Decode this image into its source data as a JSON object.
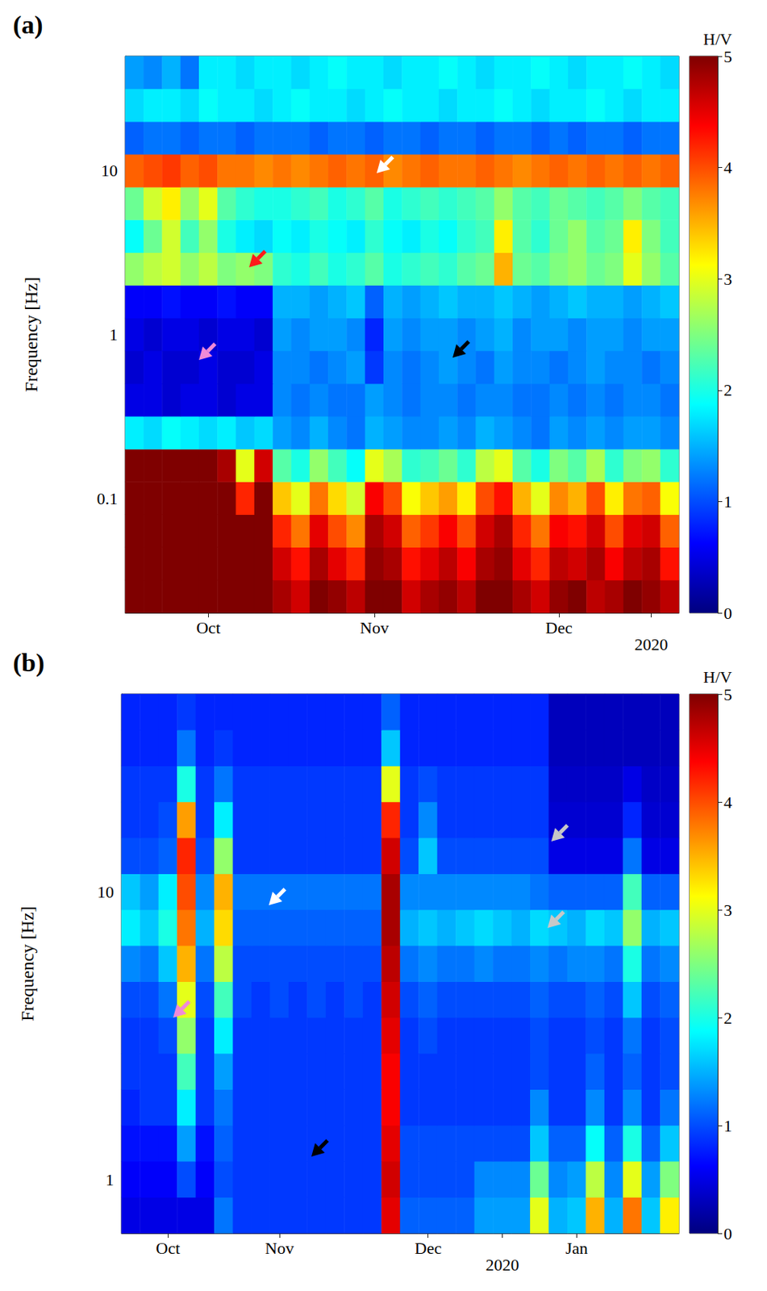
{
  "chart_data": [
    {
      "type": "heatmap",
      "title": "(a)",
      "x": [
        null,
        null,
        null,
        null,
        "Oct",
        null,
        null,
        null,
        null,
        null,
        null,
        null,
        null,
        "Nov",
        null,
        null,
        null,
        null,
        null,
        null,
        null,
        null,
        null,
        "Dec",
        null,
        null,
        null,
        null,
        "2020",
        null
      ],
      "y": [
        null,
        null,
        null,
        "0.1",
        null,
        null,
        null,
        null,
        "1",
        null,
        null,
        null,
        null,
        "10",
        null,
        null,
        null
      ],
      "ylabel": "Frequency [Hz]",
      "colorbar_label": "H/V",
      "colorbar_range": [
        0,
        5
      ],
      "colorbar_ticks": [
        0,
        1,
        2,
        3,
        4,
        5
      ],
      "cells": [
        [
          5,
          5,
          5,
          5,
          5,
          5,
          5,
          5,
          4.8,
          4.6,
          5,
          4.9,
          4.7,
          5,
          5,
          4.6,
          4.8,
          4.9,
          4.7,
          5,
          5,
          4.8,
          4.6,
          4.9,
          5,
          4.7,
          4.8,
          5,
          4.9,
          4.7
        ],
        [
          5,
          5,
          5,
          5,
          5,
          5,
          5,
          5,
          4.6,
          4.3,
          4.8,
          4.5,
          4.2,
          4.9,
          4.8,
          4.3,
          4.5,
          4.7,
          4.4,
          4.8,
          4.9,
          4.5,
          4.2,
          4.7,
          4.6,
          4.8,
          4.4,
          4.7,
          4.8,
          4.3
        ],
        [
          5,
          5,
          5,
          5,
          5,
          5,
          5,
          5,
          4.2,
          3.8,
          4.5,
          4.0,
          3.7,
          4.8,
          4.6,
          3.9,
          4.1,
          4.4,
          4.0,
          4.6,
          4.8,
          4.2,
          3.8,
          4.4,
          4.3,
          4.6,
          4.0,
          4.5,
          4.6,
          3.9
        ],
        [
          5,
          5,
          5,
          5,
          5,
          5,
          4.2,
          5,
          3.4,
          3.0,
          3.8,
          3.3,
          2.9,
          4.4,
          4.0,
          3.1,
          3.4,
          3.6,
          3.2,
          4.0,
          4.3,
          3.5,
          3.0,
          3.7,
          3.5,
          4.0,
          3.2,
          3.8,
          3.9,
          3.1
        ],
        [
          5,
          5,
          5,
          5,
          5,
          4.8,
          3.0,
          4.6,
          2.3,
          2.0,
          2.6,
          2.2,
          1.9,
          3.0,
          2.7,
          2.1,
          2.2,
          2.4,
          2.1,
          2.8,
          3.0,
          2.3,
          2.0,
          2.5,
          2.3,
          2.7,
          2.1,
          2.5,
          2.6,
          2.1
        ],
        [
          1.8,
          1.7,
          1.9,
          1.8,
          1.7,
          1.8,
          1.6,
          1.7,
          1.4,
          1.3,
          1.5,
          1.3,
          1.2,
          1.5,
          1.4,
          1.3,
          1.3,
          1.4,
          1.3,
          1.5,
          1.4,
          1.3,
          1.2,
          1.4,
          1.3,
          1.4,
          1.3,
          1.4,
          1.4,
          1.3
        ],
        [
          0.5,
          0.5,
          0.4,
          0.5,
          0.5,
          0.4,
          0.5,
          0.5,
          1.3,
          1.2,
          1.3,
          1.2,
          1.2,
          1.4,
          1.3,
          1.2,
          1.3,
          1.3,
          1.2,
          1.3,
          1.3,
          1.2,
          1.2,
          1.3,
          1.2,
          1.3,
          1.2,
          1.3,
          1.3,
          1.2
        ],
        [
          0.4,
          0.5,
          0.4,
          0.4,
          0.5,
          0.4,
          0.4,
          0.5,
          1.3,
          1.3,
          1.2,
          1.3,
          1.4,
          0.9,
          1.3,
          1.2,
          1.3,
          1.4,
          1.3,
          1.2,
          1.4,
          1.3,
          1.3,
          1.2,
          1.3,
          1.4,
          1.3,
          1.3,
          1.2,
          1.3
        ],
        [
          0.5,
          0.4,
          0.5,
          0.5,
          0.4,
          0.5,
          0.5,
          0.4,
          1.4,
          1.3,
          1.4,
          1.4,
          1.3,
          0.8,
          1.4,
          1.3,
          1.4,
          1.4,
          1.3,
          1.4,
          1.5,
          1.3,
          1.4,
          1.4,
          1.3,
          1.4,
          1.4,
          1.3,
          1.4,
          1.4
        ],
        [
          0.6,
          0.6,
          0.7,
          0.6,
          0.6,
          0.7,
          0.6,
          0.6,
          1.5,
          1.5,
          1.4,
          1.5,
          1.6,
          1.1,
          1.5,
          1.4,
          1.5,
          1.6,
          1.5,
          1.5,
          1.6,
          1.5,
          1.4,
          1.5,
          1.6,
          1.5,
          1.5,
          1.4,
          1.5,
          1.6
        ],
        [
          2.6,
          2.8,
          2.9,
          2.6,
          2.8,
          2.5,
          2.6,
          2.5,
          2.1,
          2.0,
          2.2,
          2.0,
          2.1,
          2.3,
          2.0,
          2.1,
          2.2,
          2.1,
          2.3,
          2.4,
          3.5,
          2.4,
          2.3,
          2.5,
          2.6,
          2.4,
          2.5,
          3.0,
          2.6,
          2.3
        ],
        [
          1.9,
          2.4,
          2.9,
          2.2,
          2.6,
          2.0,
          1.8,
          1.7,
          1.9,
          1.8,
          2.0,
          1.9,
          1.8,
          2.1,
          1.9,
          1.8,
          2.0,
          1.9,
          2.1,
          2.2,
          3.2,
          2.3,
          2.1,
          2.4,
          2.6,
          2.3,
          2.4,
          3.2,
          2.5,
          2.2
        ],
        [
          2.4,
          2.9,
          3.2,
          2.6,
          3.0,
          2.3,
          2.1,
          2.0,
          2.0,
          2.1,
          2.2,
          2.0,
          2.1,
          2.3,
          2.0,
          2.1,
          2.2,
          2.1,
          2.2,
          2.3,
          2.6,
          2.3,
          2.2,
          2.4,
          2.3,
          2.2,
          2.3,
          2.5,
          2.3,
          2.2
        ],
        [
          3.9,
          4.0,
          4.1,
          3.9,
          4.0,
          3.8,
          3.8,
          3.7,
          3.8,
          3.7,
          3.8,
          3.9,
          3.8,
          3.9,
          3.7,
          3.8,
          3.9,
          3.8,
          3.8,
          3.9,
          3.8,
          3.7,
          3.8,
          3.9,
          3.8,
          3.9,
          3.8,
          3.9,
          3.8,
          3.9
        ],
        [
          1.1,
          1.2,
          1.2,
          1.1,
          1.2,
          1.2,
          1.1,
          1.2,
          1.2,
          1.2,
          1.1,
          1.2,
          1.2,
          1.1,
          1.2,
          1.2,
          1.1,
          1.2,
          1.2,
          1.1,
          1.2,
          1.2,
          1.1,
          1.2,
          1.1,
          1.2,
          1.2,
          1.1,
          1.2,
          1.2
        ],
        [
          1.7,
          1.8,
          1.8,
          1.7,
          1.9,
          1.8,
          1.8,
          1.7,
          1.8,
          1.9,
          1.8,
          1.8,
          1.7,
          1.8,
          1.9,
          1.8,
          1.8,
          1.7,
          1.8,
          1.8,
          1.9,
          1.8,
          1.7,
          1.8,
          1.8,
          1.9,
          1.8,
          1.7,
          1.8,
          1.8
        ],
        [
          1.4,
          1.3,
          1.5,
          1.2,
          1.8,
          1.8,
          1.7,
          1.8,
          1.8,
          1.7,
          1.8,
          1.9,
          1.8,
          1.8,
          1.7,
          1.8,
          1.8,
          1.9,
          1.8,
          1.7,
          1.8,
          1.8,
          1.9,
          1.8,
          1.7,
          1.8,
          1.8,
          1.9,
          1.8,
          1.7
        ]
      ]
    },
    {
      "type": "heatmap",
      "title": "(b)",
      "x": [
        null,
        null,
        "Oct",
        null,
        null,
        null,
        null,
        null,
        "Nov",
        null,
        null,
        null,
        null,
        null,
        null,
        null,
        "Dec",
        null,
        null,
        null,
        "2020",
        null,
        null,
        null,
        "Jan",
        null,
        null,
        null,
        null,
        null
      ],
      "y": [
        null,
        "1",
        null,
        null,
        null,
        null,
        null,
        null,
        null,
        "10",
        null,
        null,
        null,
        null,
        null
      ],
      "ylabel": "Frequency [Hz]",
      "colorbar_label": "H/V",
      "colorbar_range": [
        0,
        5
      ],
      "colorbar_ticks": [
        0,
        1,
        2,
        3,
        4,
        5
      ],
      "cells": [
        [
          0.5,
          0.5,
          0.5,
          0.5,
          0.5,
          1.2,
          0.9,
          0.9,
          0.9,
          0.9,
          0.9,
          0.9,
          0.9,
          0.9,
          4.5,
          1.1,
          1.1,
          1.1,
          1.1,
          1.4,
          1.4,
          1.4,
          3.0,
          1.5,
          1.6,
          3.5,
          1.5,
          3.8,
          1.6,
          3.2
        ],
        [
          0.6,
          0.6,
          0.6,
          1.0,
          0.6,
          1.0,
          0.9,
          0.9,
          0.9,
          0.9,
          0.9,
          0.9,
          0.9,
          0.9,
          4.6,
          1.0,
          1.0,
          1.0,
          1.0,
          1.3,
          1.3,
          1.3,
          2.4,
          1.3,
          1.4,
          2.8,
          1.3,
          3.0,
          1.4,
          2.5
        ],
        [
          0.7,
          0.7,
          0.7,
          1.4,
          0.7,
          1.1,
          0.9,
          0.9,
          0.9,
          0.9,
          0.9,
          0.9,
          0.9,
          0.9,
          4.5,
          1.0,
          1.0,
          1.0,
          1.0,
          1.0,
          1.0,
          1.0,
          1.6,
          1.1,
          1.1,
          1.9,
          1.1,
          2.0,
          1.1,
          1.6
        ],
        [
          0.8,
          0.9,
          0.9,
          1.8,
          0.9,
          1.2,
          0.9,
          0.9,
          0.9,
          0.9,
          0.9,
          0.9,
          0.9,
          0.9,
          4.4,
          0.9,
          0.9,
          0.9,
          0.9,
          0.9,
          0.9,
          0.9,
          1.3,
          0.9,
          0.9,
          1.3,
          0.9,
          1.3,
          0.9,
          1.2
        ],
        [
          0.9,
          0.9,
          0.9,
          2.2,
          0.9,
          1.4,
          0.9,
          0.9,
          0.9,
          0.9,
          0.9,
          0.9,
          0.9,
          0.9,
          4.4,
          0.9,
          0.9,
          0.9,
          0.9,
          0.9,
          0.9,
          0.9,
          1.0,
          0.9,
          0.9,
          1.1,
          0.9,
          1.1,
          0.9,
          1.0
        ],
        [
          0.9,
          0.9,
          1.0,
          2.6,
          0.9,
          1.8,
          0.9,
          0.9,
          0.9,
          0.9,
          0.9,
          0.9,
          0.9,
          0.9,
          4.5,
          0.9,
          1.0,
          0.9,
          0.9,
          0.9,
          0.9,
          0.9,
          1.0,
          0.9,
          0.9,
          1.0,
          0.9,
          1.2,
          0.9,
          1.0
        ],
        [
          1.0,
          1.0,
          1.2,
          3.0,
          1.0,
          2.2,
          1.0,
          0.9,
          1.0,
          0.9,
          1.0,
          0.9,
          1.0,
          0.9,
          4.6,
          1.0,
          1.1,
          1.0,
          1.0,
          1.0,
          1.0,
          1.0,
          1.1,
          1.0,
          1.0,
          1.1,
          1.0,
          1.6,
          1.0,
          1.1
        ],
        [
          1.3,
          1.2,
          1.6,
          3.5,
          1.2,
          2.8,
          1.0,
          1.0,
          1.0,
          1.0,
          1.0,
          1.0,
          1.0,
          1.0,
          4.7,
          1.2,
          1.3,
          1.2,
          1.2,
          1.3,
          1.2,
          1.2,
          1.3,
          1.2,
          1.3,
          1.3,
          1.2,
          2.0,
          1.2,
          1.3
        ],
        [
          1.8,
          1.6,
          2.0,
          3.8,
          1.5,
          3.3,
          1.1,
          1.1,
          1.1,
          1.1,
          1.1,
          1.1,
          1.1,
          1.1,
          4.8,
          1.5,
          1.6,
          1.5,
          1.6,
          1.7,
          1.6,
          1.5,
          1.7,
          1.6,
          1.5,
          1.7,
          1.6,
          2.6,
          1.5,
          1.6
        ],
        [
          1.6,
          1.4,
          1.8,
          4.0,
          1.3,
          3.5,
          1.2,
          1.2,
          1.2,
          1.2,
          1.2,
          1.2,
          1.2,
          1.2,
          4.8,
          1.3,
          1.3,
          1.3,
          1.3,
          1.3,
          1.3,
          1.3,
          1.2,
          1.1,
          1.1,
          1.1,
          1.1,
          2.2,
          1.1,
          1.1
        ],
        [
          1.0,
          1.0,
          1.1,
          4.2,
          1.0,
          2.6,
          0.9,
          0.9,
          0.9,
          0.9,
          0.9,
          0.9,
          0.9,
          0.9,
          4.6,
          1.0,
          1.6,
          1.0,
          1.0,
          1.0,
          1.0,
          1.0,
          1.0,
          0.5,
          0.5,
          0.5,
          0.5,
          1.2,
          0.5,
          0.5
        ],
        [
          0.9,
          0.9,
          1.0,
          3.6,
          0.9,
          1.8,
          0.9,
          0.9,
          0.9,
          0.9,
          0.9,
          0.9,
          0.9,
          0.9,
          4.2,
          0.9,
          1.3,
          0.9,
          0.9,
          0.9,
          0.9,
          0.9,
          0.9,
          0.4,
          0.4,
          0.4,
          0.4,
          0.8,
          0.4,
          0.4
        ],
        [
          0.9,
          0.9,
          0.9,
          2.0,
          0.9,
          1.2,
          0.9,
          0.9,
          0.9,
          0.9,
          0.9,
          0.9,
          0.9,
          0.9,
          3.0,
          0.9,
          1.0,
          0.9,
          0.9,
          0.9,
          0.9,
          0.9,
          0.9,
          0.35,
          0.35,
          0.35,
          0.35,
          0.5,
          0.35,
          0.35
        ],
        [
          0.8,
          0.8,
          0.8,
          1.2,
          0.8,
          0.9,
          0.8,
          0.8,
          0.8,
          0.8,
          0.8,
          0.8,
          0.8,
          0.8,
          1.6,
          0.8,
          0.8,
          0.8,
          0.8,
          0.8,
          0.8,
          0.8,
          0.8,
          0.3,
          0.3,
          0.3,
          0.3,
          0.3,
          0.3,
          0.3
        ],
        [
          0.8,
          0.8,
          0.8,
          0.9,
          0.8,
          0.8,
          0.8,
          0.8,
          0.8,
          0.8,
          0.8,
          0.8,
          0.8,
          0.8,
          1.1,
          0.8,
          0.8,
          0.8,
          0.8,
          0.8,
          0.8,
          0.8,
          0.8,
          0.3,
          0.3,
          0.3,
          0.3,
          0.3,
          0.3,
          0.3
        ]
      ]
    }
  ]
}
